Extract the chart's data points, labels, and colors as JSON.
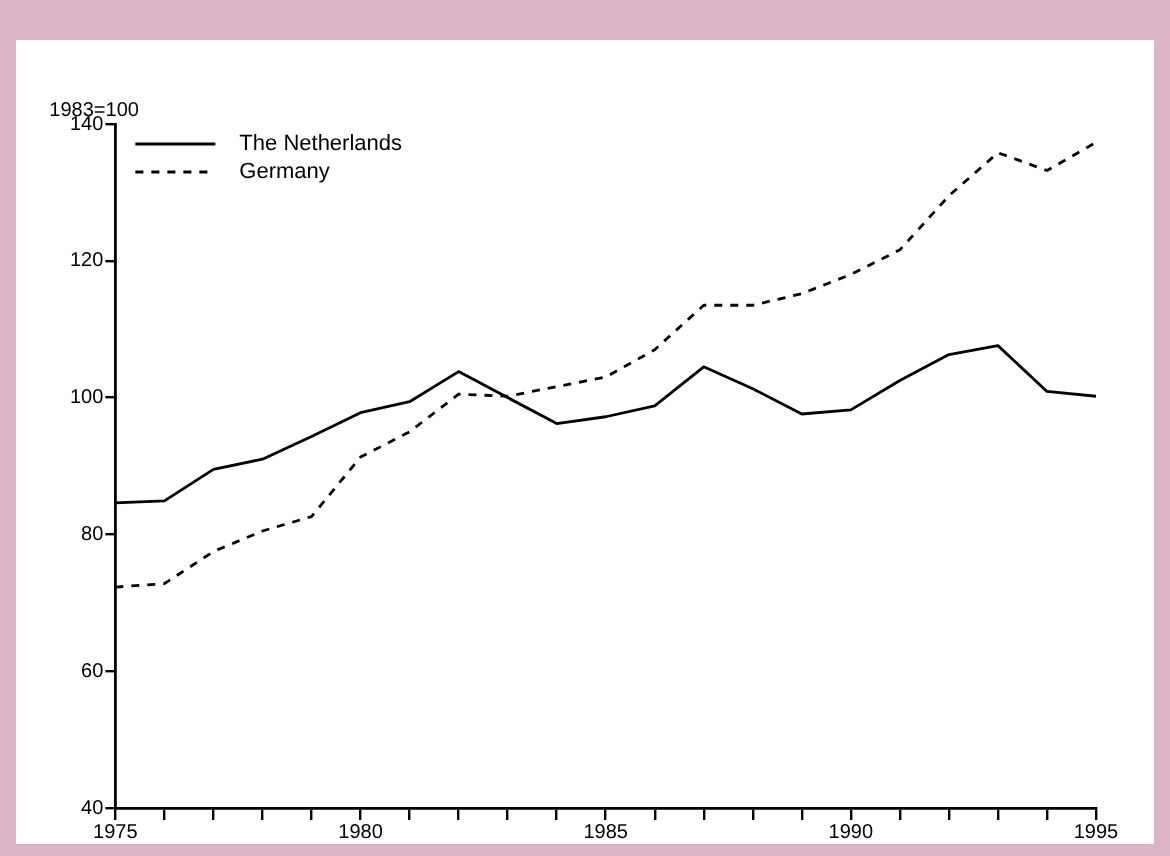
{
  "chart_data": {
    "type": "line",
    "ylabel": "1983=100",
    "x": [
      1975,
      1976,
      1977,
      1978,
      1979,
      1980,
      1981,
      1982,
      1983,
      1984,
      1985,
      1986,
      1987,
      1988,
      1989,
      1990,
      1991,
      1992,
      1993,
      1994,
      1995
    ],
    "series": [
      {
        "name": "The Netherlands",
        "color": "#000000",
        "line_style": "solid",
        "values": [
          84.6,
          84.9,
          89.5,
          91,
          94.3,
          97.8,
          99.4,
          103.8,
          100,
          96.2,
          97.2,
          98.8,
          104.5,
          101.3,
          97.6,
          98.2,
          102.5,
          106.3,
          107.6,
          100.9,
          100.2
        ]
      },
      {
        "name": "Germany",
        "color": "#000000",
        "line_style": "dashed",
        "values": [
          72.3,
          72.8,
          77.5,
          80.5,
          82.6,
          91.3,
          95,
          100.5,
          100.2,
          101.6,
          103,
          107,
          113.5,
          113.5,
          115.2,
          118,
          121.6,
          129.5,
          135.8,
          133.2,
          137.3
        ]
      }
    ],
    "xlim": [
      1975,
      1995
    ],
    "xticks": [
      1975,
      {
        "value": 1976,
        "label": null
      },
      {
        "value": 1977,
        "label": null
      },
      {
        "value": 1978,
        "label": null
      },
      {
        "value": 1979,
        "label": null
      },
      1980,
      {
        "value": 1981,
        "label": null
      },
      {
        "value": 1982,
        "label": null
      },
      {
        "value": 1983,
        "label": null
      },
      {
        "value": 1984,
        "label": null
      },
      1985,
      {
        "value": 1986,
        "label": null
      },
      {
        "value": 1987,
        "label": null
      },
      {
        "value": 1988,
        "label": null
      },
      {
        "value": 1989,
        "label": null
      },
      1990,
      {
        "value": 1991,
        "label": null
      },
      {
        "value": 1992,
        "label": null
      },
      {
        "value": 1993,
        "label": null
      },
      {
        "value": 1994,
        "label": null
      },
      1995
    ],
    "ylim": [
      40,
      140
    ],
    "yticks": [
      40,
      60,
      80,
      100,
      120,
      140
    ],
    "legend": "top left",
    "marker": "none"
  }
}
